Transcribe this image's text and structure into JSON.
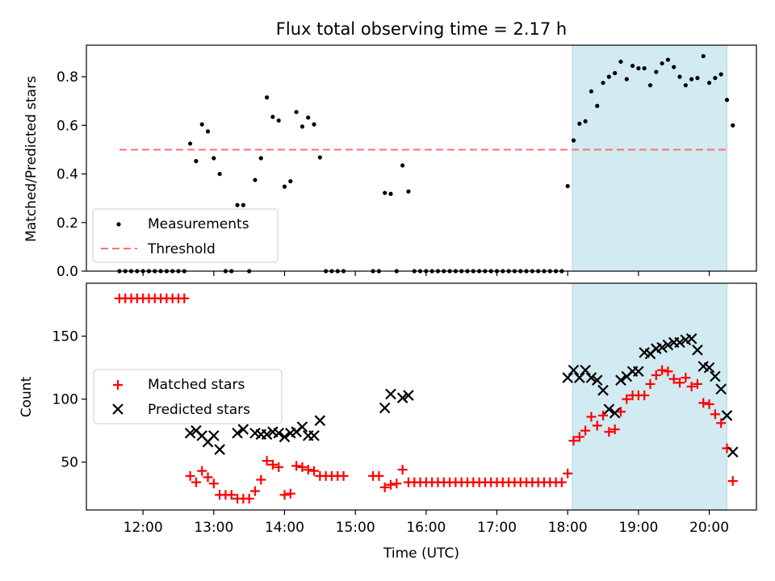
{
  "chart_data": [
    {
      "type": "scatter",
      "title": "Flux total observing time = 2.17 h",
      "ylabel": "Matched/Predicted stars",
      "xlim": [
        "11:12",
        "20:40"
      ],
      "ylim": [
        0,
        0.93
      ],
      "yticks": [
        0.0,
        0.2,
        0.4,
        0.6,
        0.8
      ],
      "yticklabels": [
        "0.0",
        "0.2",
        "0.4",
        "0.6",
        "0.8"
      ],
      "shaded_span": {
        "x": [
          "18:04",
          "20:15"
        ],
        "color": "#add8e6"
      },
      "threshold": {
        "y": 0.5,
        "x": [
          "11:40",
          "20:15"
        ],
        "color": "#ff7070"
      },
      "legend_position": "lower-left",
      "series": [
        {
          "name": "Measurements",
          "marker": "dot",
          "color": "#000000",
          "points": [
            [
              "11:40",
              0
            ],
            [
              "11:45",
              0
            ],
            [
              "11:50",
              0
            ],
            [
              "11:55",
              0
            ],
            [
              "12:00",
              0
            ],
            [
              "12:05",
              0
            ],
            [
              "12:10",
              0
            ],
            [
              "12:15",
              0
            ],
            [
              "12:20",
              0
            ],
            [
              "12:25",
              0
            ],
            [
              "12:30",
              0
            ],
            [
              "12:35",
              0
            ],
            [
              "12:40",
              0.525
            ],
            [
              "12:45",
              0.453
            ],
            [
              "12:50",
              0.604
            ],
            [
              "12:55",
              0.575
            ],
            [
              "13:00",
              0.465
            ],
            [
              "13:05",
              0.4
            ],
            [
              "13:10",
              0
            ],
            [
              "13:15",
              0
            ],
            [
              "13:20",
              0.272
            ],
            [
              "13:25",
              0.272
            ],
            [
              "13:30",
              0
            ],
            [
              "13:35",
              0.375
            ],
            [
              "13:40",
              0.465
            ],
            [
              "13:45",
              0.715
            ],
            [
              "13:50",
              0.635
            ],
            [
              "13:55",
              0.62
            ],
            [
              "14:00",
              0.348
            ],
            [
              "14:05",
              0.37
            ],
            [
              "14:10",
              0.655
            ],
            [
              "14:15",
              0.595
            ],
            [
              "14:20",
              0.632
            ],
            [
              "14:25",
              0.604
            ],
            [
              "14:30",
              0.468
            ],
            [
              "14:35",
              0
            ],
            [
              "14:40",
              0
            ],
            [
              "14:45",
              0
            ],
            [
              "14:50",
              0
            ],
            [
              "15:15",
              0
            ],
            [
              "15:20",
              0
            ],
            [
              "15:25",
              0.322
            ],
            [
              "15:30",
              0.318
            ],
            [
              "15:35",
              0
            ],
            [
              "15:40",
              0.435
            ],
            [
              "15:45",
              0.328
            ],
            [
              "15:50",
              0
            ],
            [
              "15:55",
              0
            ],
            [
              "16:00",
              0
            ],
            [
              "16:05",
              0
            ],
            [
              "16:10",
              0
            ],
            [
              "16:15",
              0
            ],
            [
              "16:20",
              0
            ],
            [
              "16:25",
              0
            ],
            [
              "16:30",
              0
            ],
            [
              "16:35",
              0
            ],
            [
              "16:40",
              0
            ],
            [
              "16:45",
              0
            ],
            [
              "16:50",
              0
            ],
            [
              "16:55",
              0
            ],
            [
              "17:00",
              0
            ],
            [
              "17:05",
              0
            ],
            [
              "17:10",
              0
            ],
            [
              "17:15",
              0
            ],
            [
              "17:20",
              0
            ],
            [
              "17:25",
              0
            ],
            [
              "17:30",
              0
            ],
            [
              "17:35",
              0
            ],
            [
              "17:40",
              0
            ],
            [
              "17:45",
              0
            ],
            [
              "17:50",
              0
            ],
            [
              "17:55",
              0
            ],
            [
              "18:00",
              0.35
            ],
            [
              "18:05",
              0.538
            ],
            [
              "18:10",
              0.607
            ],
            [
              "18:15",
              0.617
            ],
            [
              "18:20",
              0.74
            ],
            [
              "18:25",
              0.68
            ],
            [
              "18:30",
              0.775
            ],
            [
              "18:35",
              0.8
            ],
            [
              "18:40",
              0.815
            ],
            [
              "18:45",
              0.862
            ],
            [
              "18:50",
              0.79
            ],
            [
              "18:55",
              0.845
            ],
            [
              "19:00",
              0.835
            ],
            [
              "19:05",
              0.835
            ],
            [
              "19:10",
              0.765
            ],
            [
              "19:15",
              0.82
            ],
            [
              "19:20",
              0.855
            ],
            [
              "19:25",
              0.87
            ],
            [
              "19:30",
              0.84
            ],
            [
              "19:35",
              0.8
            ],
            [
              "19:40",
              0.765
            ],
            [
              "19:45",
              0.79
            ],
            [
              "19:50",
              0.795
            ],
            [
              "19:55",
              0.885
            ],
            [
              "20:00",
              0.775
            ],
            [
              "20:05",
              0.795
            ],
            [
              "20:10",
              0.81
            ],
            [
              "20:15",
              0.705
            ],
            [
              "20:20",
              0.6
            ]
          ]
        },
        {
          "name": "Threshold",
          "marker": "dashed-line",
          "color": "#ff7070"
        }
      ]
    },
    {
      "type": "scatter",
      "xlabel": "Time (UTC)",
      "ylabel": "Count",
      "xlim": [
        "11:12",
        "20:40"
      ],
      "xticks": [
        "12:00",
        "13:00",
        "14:00",
        "15:00",
        "16:00",
        "17:00",
        "18:00",
        "19:00",
        "20:00"
      ],
      "ylim": [
        12,
        192
      ],
      "yticks": [
        50,
        100,
        150
      ],
      "yticklabels": [
        "50",
        "100",
        "150"
      ],
      "shaded_span": {
        "x": [
          "18:04",
          "20:15"
        ],
        "color": "#add8e6"
      },
      "legend_position": "center-left",
      "series": [
        {
          "name": "Matched stars",
          "marker": "plus",
          "color": "#ff0000",
          "points": [
            [
              "11:40",
              180
            ],
            [
              "11:45",
              180
            ],
            [
              "11:50",
              180
            ],
            [
              "11:55",
              180
            ],
            [
              "12:00",
              180
            ],
            [
              "12:05",
              180
            ],
            [
              "12:10",
              180
            ],
            [
              "12:15",
              180
            ],
            [
              "12:20",
              180
            ],
            [
              "12:25",
              180
            ],
            [
              "12:30",
              180
            ],
            [
              "12:35",
              180
            ],
            [
              "12:40",
              39
            ],
            [
              "12:45",
              34
            ],
            [
              "12:50",
              43
            ],
            [
              "12:55",
              38
            ],
            [
              "13:00",
              33
            ],
            [
              "13:05",
              24
            ],
            [
              "13:10",
              24
            ],
            [
              "13:15",
              24
            ],
            [
              "13:20",
              21
            ],
            [
              "13:25",
              21
            ],
            [
              "13:30",
              21
            ],
            [
              "13:35",
              27
            ],
            [
              "13:40",
              36
            ],
            [
              "13:45",
              51
            ],
            [
              "13:50",
              48
            ],
            [
              "13:55",
              46
            ],
            [
              "14:00",
              24
            ],
            [
              "14:05",
              25
            ],
            [
              "14:10",
              47
            ],
            [
              "14:15",
              46
            ],
            [
              "14:20",
              44
            ],
            [
              "14:25",
              43
            ],
            [
              "14:30",
              39
            ],
            [
              "14:35",
              39
            ],
            [
              "14:40",
              39
            ],
            [
              "14:45",
              39
            ],
            [
              "14:50",
              39
            ],
            [
              "15:15",
              39
            ],
            [
              "15:20",
              39
            ],
            [
              "15:25",
              30
            ],
            [
              "15:30",
              32
            ],
            [
              "15:35",
              33
            ],
            [
              "15:40",
              44
            ],
            [
              "15:45",
              34
            ],
            [
              "15:50",
              34
            ],
            [
              "15:55",
              34
            ],
            [
              "16:00",
              34
            ],
            [
              "16:05",
              34
            ],
            [
              "16:10",
              34
            ],
            [
              "16:15",
              34
            ],
            [
              "16:20",
              34
            ],
            [
              "16:25",
              34
            ],
            [
              "16:30",
              34
            ],
            [
              "16:35",
              34
            ],
            [
              "16:40",
              34
            ],
            [
              "16:45",
              34
            ],
            [
              "16:50",
              34
            ],
            [
              "16:55",
              34
            ],
            [
              "17:00",
              34
            ],
            [
              "17:05",
              34
            ],
            [
              "17:10",
              34
            ],
            [
              "17:15",
              34
            ],
            [
              "17:20",
              34
            ],
            [
              "17:25",
              34
            ],
            [
              "17:30",
              34
            ],
            [
              "17:35",
              34
            ],
            [
              "17:40",
              34
            ],
            [
              "17:45",
              34
            ],
            [
              "17:50",
              34
            ],
            [
              "17:55",
              34
            ],
            [
              "18:00",
              41
            ],
            [
              "18:05",
              67
            ],
            [
              "18:10",
              70
            ],
            [
              "18:15",
              75
            ],
            [
              "18:20",
              86
            ],
            [
              "18:25",
              79
            ],
            [
              "18:30",
              87
            ],
            [
              "18:35",
              74
            ],
            [
              "18:40",
              76
            ],
            [
              "18:45",
              90
            ],
            [
              "18:50",
              100
            ],
            [
              "18:55",
              103
            ],
            [
              "19:00",
              103
            ],
            [
              "19:05",
              103
            ],
            [
              "19:10",
              112
            ],
            [
              "19:15",
              119
            ],
            [
              "19:20",
              123
            ],
            [
              "19:25",
              122
            ],
            [
              "19:30",
              116
            ],
            [
              "19:35",
              113
            ],
            [
              "19:40",
              117
            ],
            [
              "19:45",
              110
            ],
            [
              "19:50",
              112
            ],
            [
              "19:55",
              97
            ],
            [
              "20:00",
              96
            ],
            [
              "20:05",
              88
            ],
            [
              "20:10",
              81
            ],
            [
              "20:15",
              61
            ],
            [
              "20:20",
              35
            ]
          ]
        },
        {
          "name": "Predicted stars",
          "marker": "x",
          "color": "#000000",
          "points": [
            [
              "12:40",
              73
            ],
            [
              "12:45",
              75
            ],
            [
              "12:50",
              71
            ],
            [
              "12:55",
              66
            ],
            [
              "13:00",
              71
            ],
            [
              "13:05",
              60
            ],
            [
              "13:20",
              73
            ],
            [
              "13:25",
              76
            ],
            [
              "13:35",
              73
            ],
            [
              "13:40",
              72
            ],
            [
              "13:45",
              72
            ],
            [
              "13:50",
              74
            ],
            [
              "13:55",
              73
            ],
            [
              "14:00",
              70
            ],
            [
              "14:05",
              73
            ],
            [
              "14:10",
              74
            ],
            [
              "14:15",
              78
            ],
            [
              "14:20",
              71
            ],
            [
              "14:25",
              71
            ],
            [
              "14:30",
              83
            ],
            [
              "15:25",
              93
            ],
            [
              "15:30",
              104
            ],
            [
              "15:40",
              101
            ],
            [
              "15:45",
              103
            ],
            [
              "18:00",
              117
            ],
            [
              "18:05",
              123
            ],
            [
              "18:10",
              117
            ],
            [
              "18:15",
              123
            ],
            [
              "18:20",
              117
            ],
            [
              "18:25",
              115
            ],
            [
              "18:30",
              107
            ],
            [
              "18:35",
              92
            ],
            [
              "18:40",
              89
            ],
            [
              "18:45",
              115
            ],
            [
              "18:50",
              118
            ],
            [
              "18:55",
              122
            ],
            [
              "19:00",
              122
            ],
            [
              "19:05",
              137
            ],
            [
              "19:10",
              136
            ],
            [
              "19:15",
              140
            ],
            [
              "19:20",
              141
            ],
            [
              "19:25",
              143
            ],
            [
              "19:30",
              145
            ],
            [
              "19:35",
              145
            ],
            [
              "19:40",
              147
            ],
            [
              "19:45",
              148
            ],
            [
              "19:50",
              139
            ],
            [
              "19:55",
              126
            ],
            [
              "20:00",
              125
            ],
            [
              "20:05",
              118
            ],
            [
              "20:10",
              108
            ],
            [
              "20:15",
              87
            ],
            [
              "20:20",
              58
            ]
          ]
        }
      ]
    }
  ]
}
